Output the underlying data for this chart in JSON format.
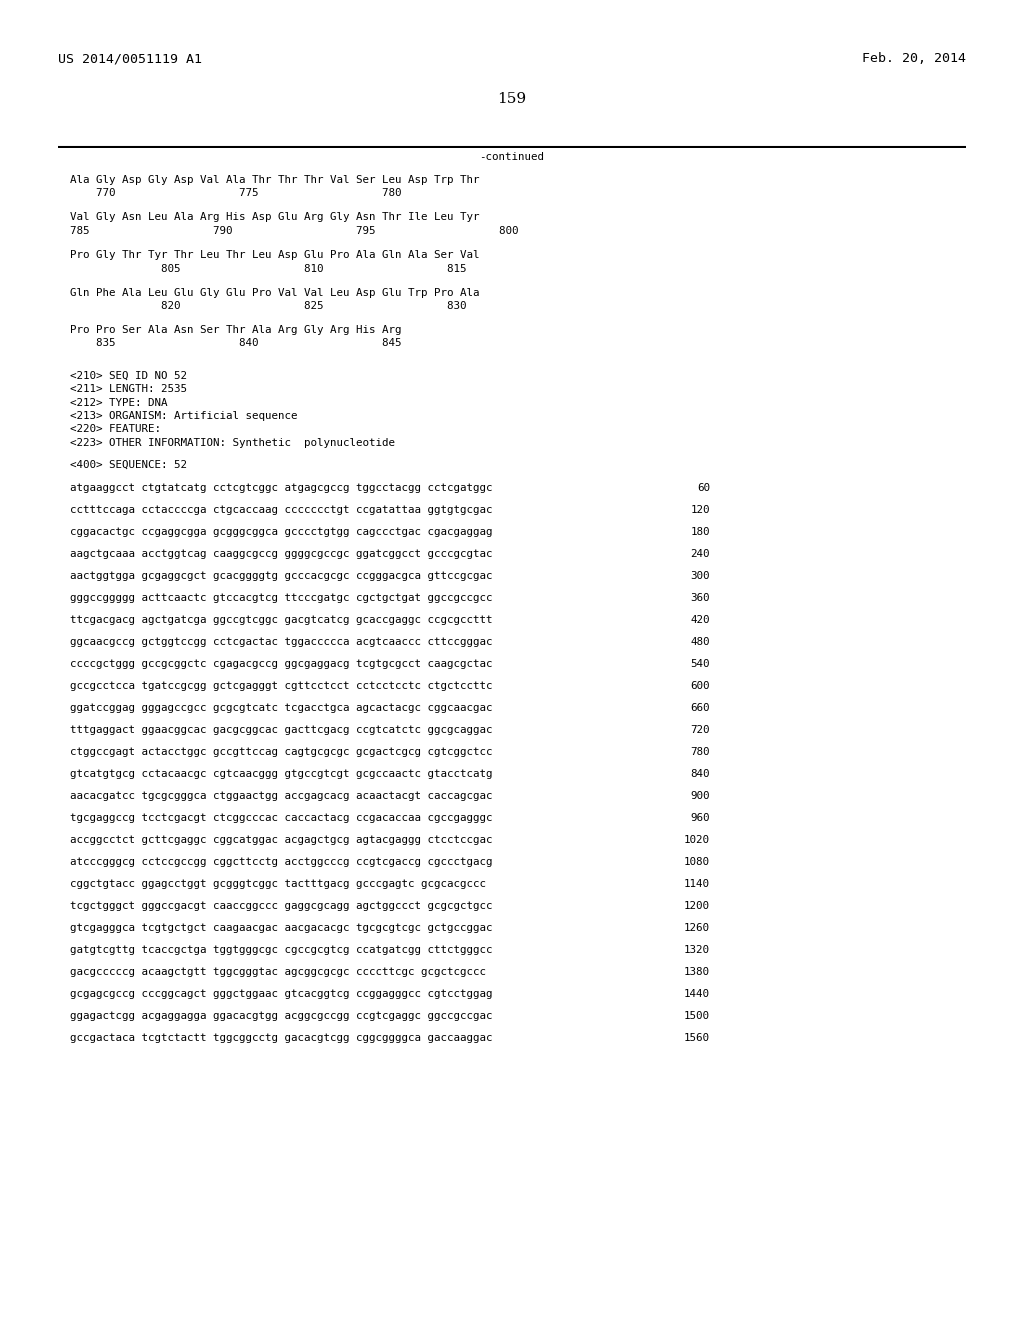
{
  "header_left": "US 2014/0051119 A1",
  "header_right": "Feb. 20, 2014",
  "page_number": "159",
  "continued_label": "-continued",
  "background_color": "#ffffff",
  "text_color": "#000000",
  "protein_blocks": [
    {
      "line1": "Ala Gly Asp Gly Asp Val Ala Thr Thr Thr Val Ser Leu Asp Trp Thr",
      "line2": "    770                   775                   780"
    },
    {
      "line1": "Val Gly Asn Leu Ala Arg His Asp Glu Arg Gly Asn Thr Ile Leu Tyr",
      "line2": "785                   790                   795                   800"
    },
    {
      "line1": "Pro Gly Thr Tyr Thr Leu Thr Leu Asp Glu Pro Ala Gln Ala Ser Val",
      "line2": "              805                   810                   815"
    },
    {
      "line1": "Gln Phe Ala Leu Glu Gly Glu Pro Val Val Leu Asp Glu Trp Pro Ala",
      "line2": "              820                   825                   830"
    },
    {
      "line1": "Pro Pro Ser Ala Asn Ser Thr Ala Arg Gly Arg His Arg",
      "line2": "    835                   840                   845"
    }
  ],
  "meta_lines": [
    "<210> SEQ ID NO 52",
    "<211> LENGTH: 2535",
    "<212> TYPE: DNA",
    "<213> ORGANISM: Artificial sequence",
    "<220> FEATURE:",
    "<223> OTHER INFORMATION: Synthetic  polynucleotide"
  ],
  "sequence_label": "<400> SEQUENCE: 52",
  "dna_lines": [
    [
      "atgaaggcct ctgtatcatg cctcgtcggc atgagcgccg tggcctacgg cctcgatggc",
      "60"
    ],
    [
      "cctttccaga cctaccccga ctgcaccaag ccccccctgt ccgatattaa ggtgtgcgac",
      "120"
    ],
    [
      "cggacactgc ccgaggcgga gcgggcggca gcccctgtgg cagccctgac cgacgaggag",
      "180"
    ],
    [
      "aagctgcaaa acctggtcag caaggcgccg ggggcgccgc ggatcggcct gcccgcgtac",
      "240"
    ],
    [
      "aactggtgga gcgaggcgct gcacggggtg gcccacgcgc ccgggacgca gttccgcgac",
      "300"
    ],
    [
      "gggccggggg acttcaactc gtccacgtcg ttcccgatgc cgctgctgat ggccgccgcc",
      "360"
    ],
    [
      "ttcgacgacg agctgatcga ggccgtcggc gacgtcatcg gcaccgaggc ccgcgccttt",
      "420"
    ],
    [
      "ggcaacgccg gctggtccgg cctcgactac tggaccccca acgtcaaccc cttccgggac",
      "480"
    ],
    [
      "ccccgctggg gccgcggctc cgagacgccg ggcgaggacg tcgtgcgcct caagcgctac",
      "540"
    ],
    [
      "gccgcctcca tgatccgcgg gctcgagggt cgttcctcct cctcctcctc ctgctccttc",
      "600"
    ],
    [
      "ggatccggag gggagccgcc gcgcgtcatc tcgacctgca agcactacgc cggcaacgac",
      "660"
    ],
    [
      "tttgaggact ggaacggcac gacgcggcac gacttcgacg ccgtcatctc ggcgcaggac",
      "720"
    ],
    [
      "ctggccgagt actacctggc gccgttccag cagtgcgcgc gcgactcgcg cgtcggctcc",
      "780"
    ],
    [
      "gtcatgtgcg cctacaacgc cgtcaacggg gtgccgtcgt gcgccaactc gtacctcatg",
      "840"
    ],
    [
      "aacacgatcc tgcgcgggca ctggaactgg accgagcacg acaactacgt caccagcgac",
      "900"
    ],
    [
      "tgcgaggccg tcctcgacgt ctcggcccac caccactacg ccgacaccaa cgccgagggc",
      "960"
    ],
    [
      "accggcctct gcttcgaggc cggcatggac acgagctgcg agtacgaggg ctcctccgac",
      "1020"
    ],
    [
      "atcccgggcg cctccgccgg cggcttcctg acctggcccg ccgtcgaccg cgccctgacg",
      "1080"
    ],
    [
      "cggctgtacc ggagcctggt gcgggtcggc tactttgacg gcccgagtc gcgcacgccc",
      "1140"
    ],
    [
      "tcgctgggct gggccgacgt caaccggccc gaggcgcagg agctggccct gcgcgctgcc",
      "1200"
    ],
    [
      "gtcgagggca tcgtgctgct caagaacgac aacgacacgc tgcgcgtcgc gctgccggac",
      "1260"
    ],
    [
      "gatgtcgttg tcaccgctga tggtgggcgc cgccgcgtcg ccatgatcgg cttctgggcc",
      "1320"
    ],
    [
      "gacgcccccg acaagctgtt tggcgggtac agcggcgcgc ccccttcgc gcgctcgccc",
      "1380"
    ],
    [
      "gcgagcgccg cccggcagct gggctggaac gtcacggtcg ccggagggcc cgtcctggag",
      "1440"
    ],
    [
      "ggagactcgg acgaggagga ggacacgtgg acggcgccgg ccgtcgaggc ggccgccgac",
      "1500"
    ],
    [
      "gccgactaca tcgtctactt tggcggcctg gacacgtcgg cggcggggca gaccaaggac",
      "1560"
    ]
  ]
}
